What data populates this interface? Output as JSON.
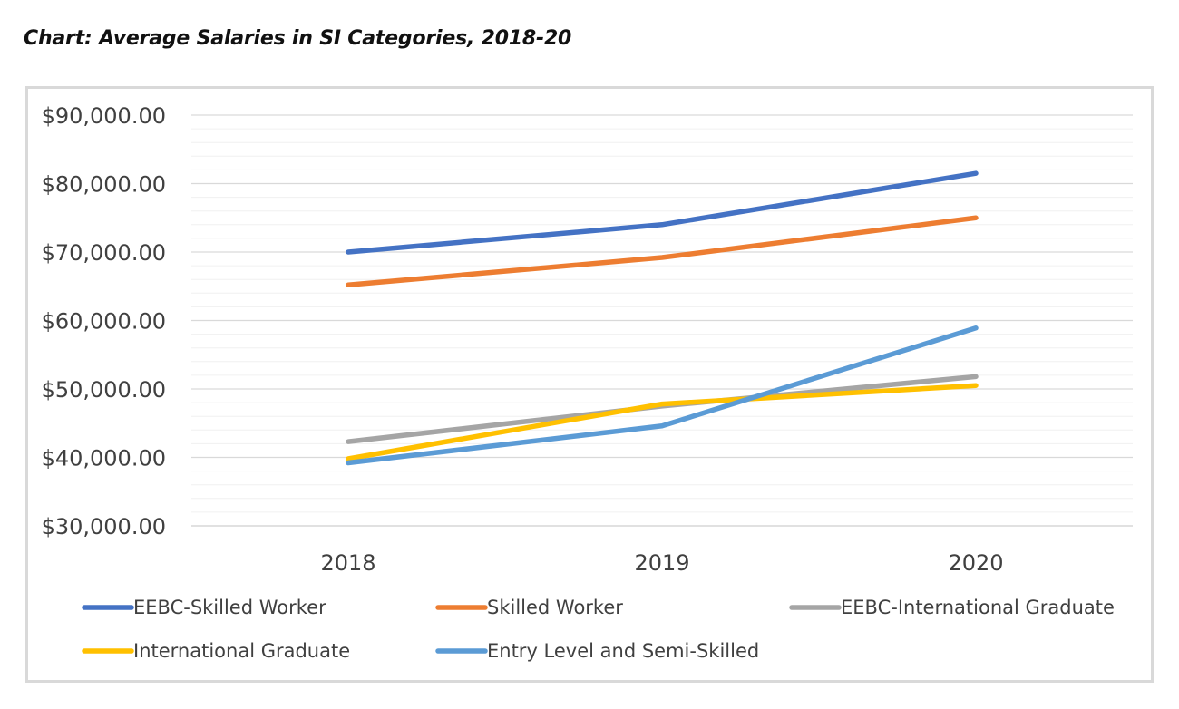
{
  "page": {
    "title": "Chart: Average Salaries in SI Categories, 2018-20"
  },
  "chart_data": {
    "type": "line",
    "title": "Chart: Average Salaries in SI Categories, 2018-20",
    "xlabel": "",
    "ylabel": "",
    "x": [
      "2018",
      "2019",
      "2020"
    ],
    "ylim": [
      30000,
      90000
    ],
    "yticks": [
      30000,
      40000,
      50000,
      60000,
      70000,
      80000,
      90000
    ],
    "ytick_labels": [
      "$30,000.00",
      "$40,000.00",
      "$50,000.00",
      "$60,000.00",
      "$70,000.00",
      "$80,000.00",
      "$90,000.00"
    ],
    "minor_grid_step": 2000,
    "grid": true,
    "legend_position": "bottom",
    "series": [
      {
        "name": "EEBC-Skilled Worker",
        "color": "#4472c4",
        "values": [
          70000,
          74000,
          81500
        ]
      },
      {
        "name": "Skilled Worker",
        "color": "#ed7d31",
        "values": [
          65200,
          69200,
          75000
        ]
      },
      {
        "name": "EEBC-International Graduate",
        "color": "#a5a5a5",
        "values": [
          42300,
          47500,
          51800
        ]
      },
      {
        "name": "International Graduate",
        "color": "#ffc000",
        "values": [
          39800,
          47800,
          50500
        ]
      },
      {
        "name": "Entry Level and Semi-Skilled",
        "color": "#5b9bd5",
        "values": [
          39200,
          44600,
          58900
        ]
      }
    ]
  }
}
